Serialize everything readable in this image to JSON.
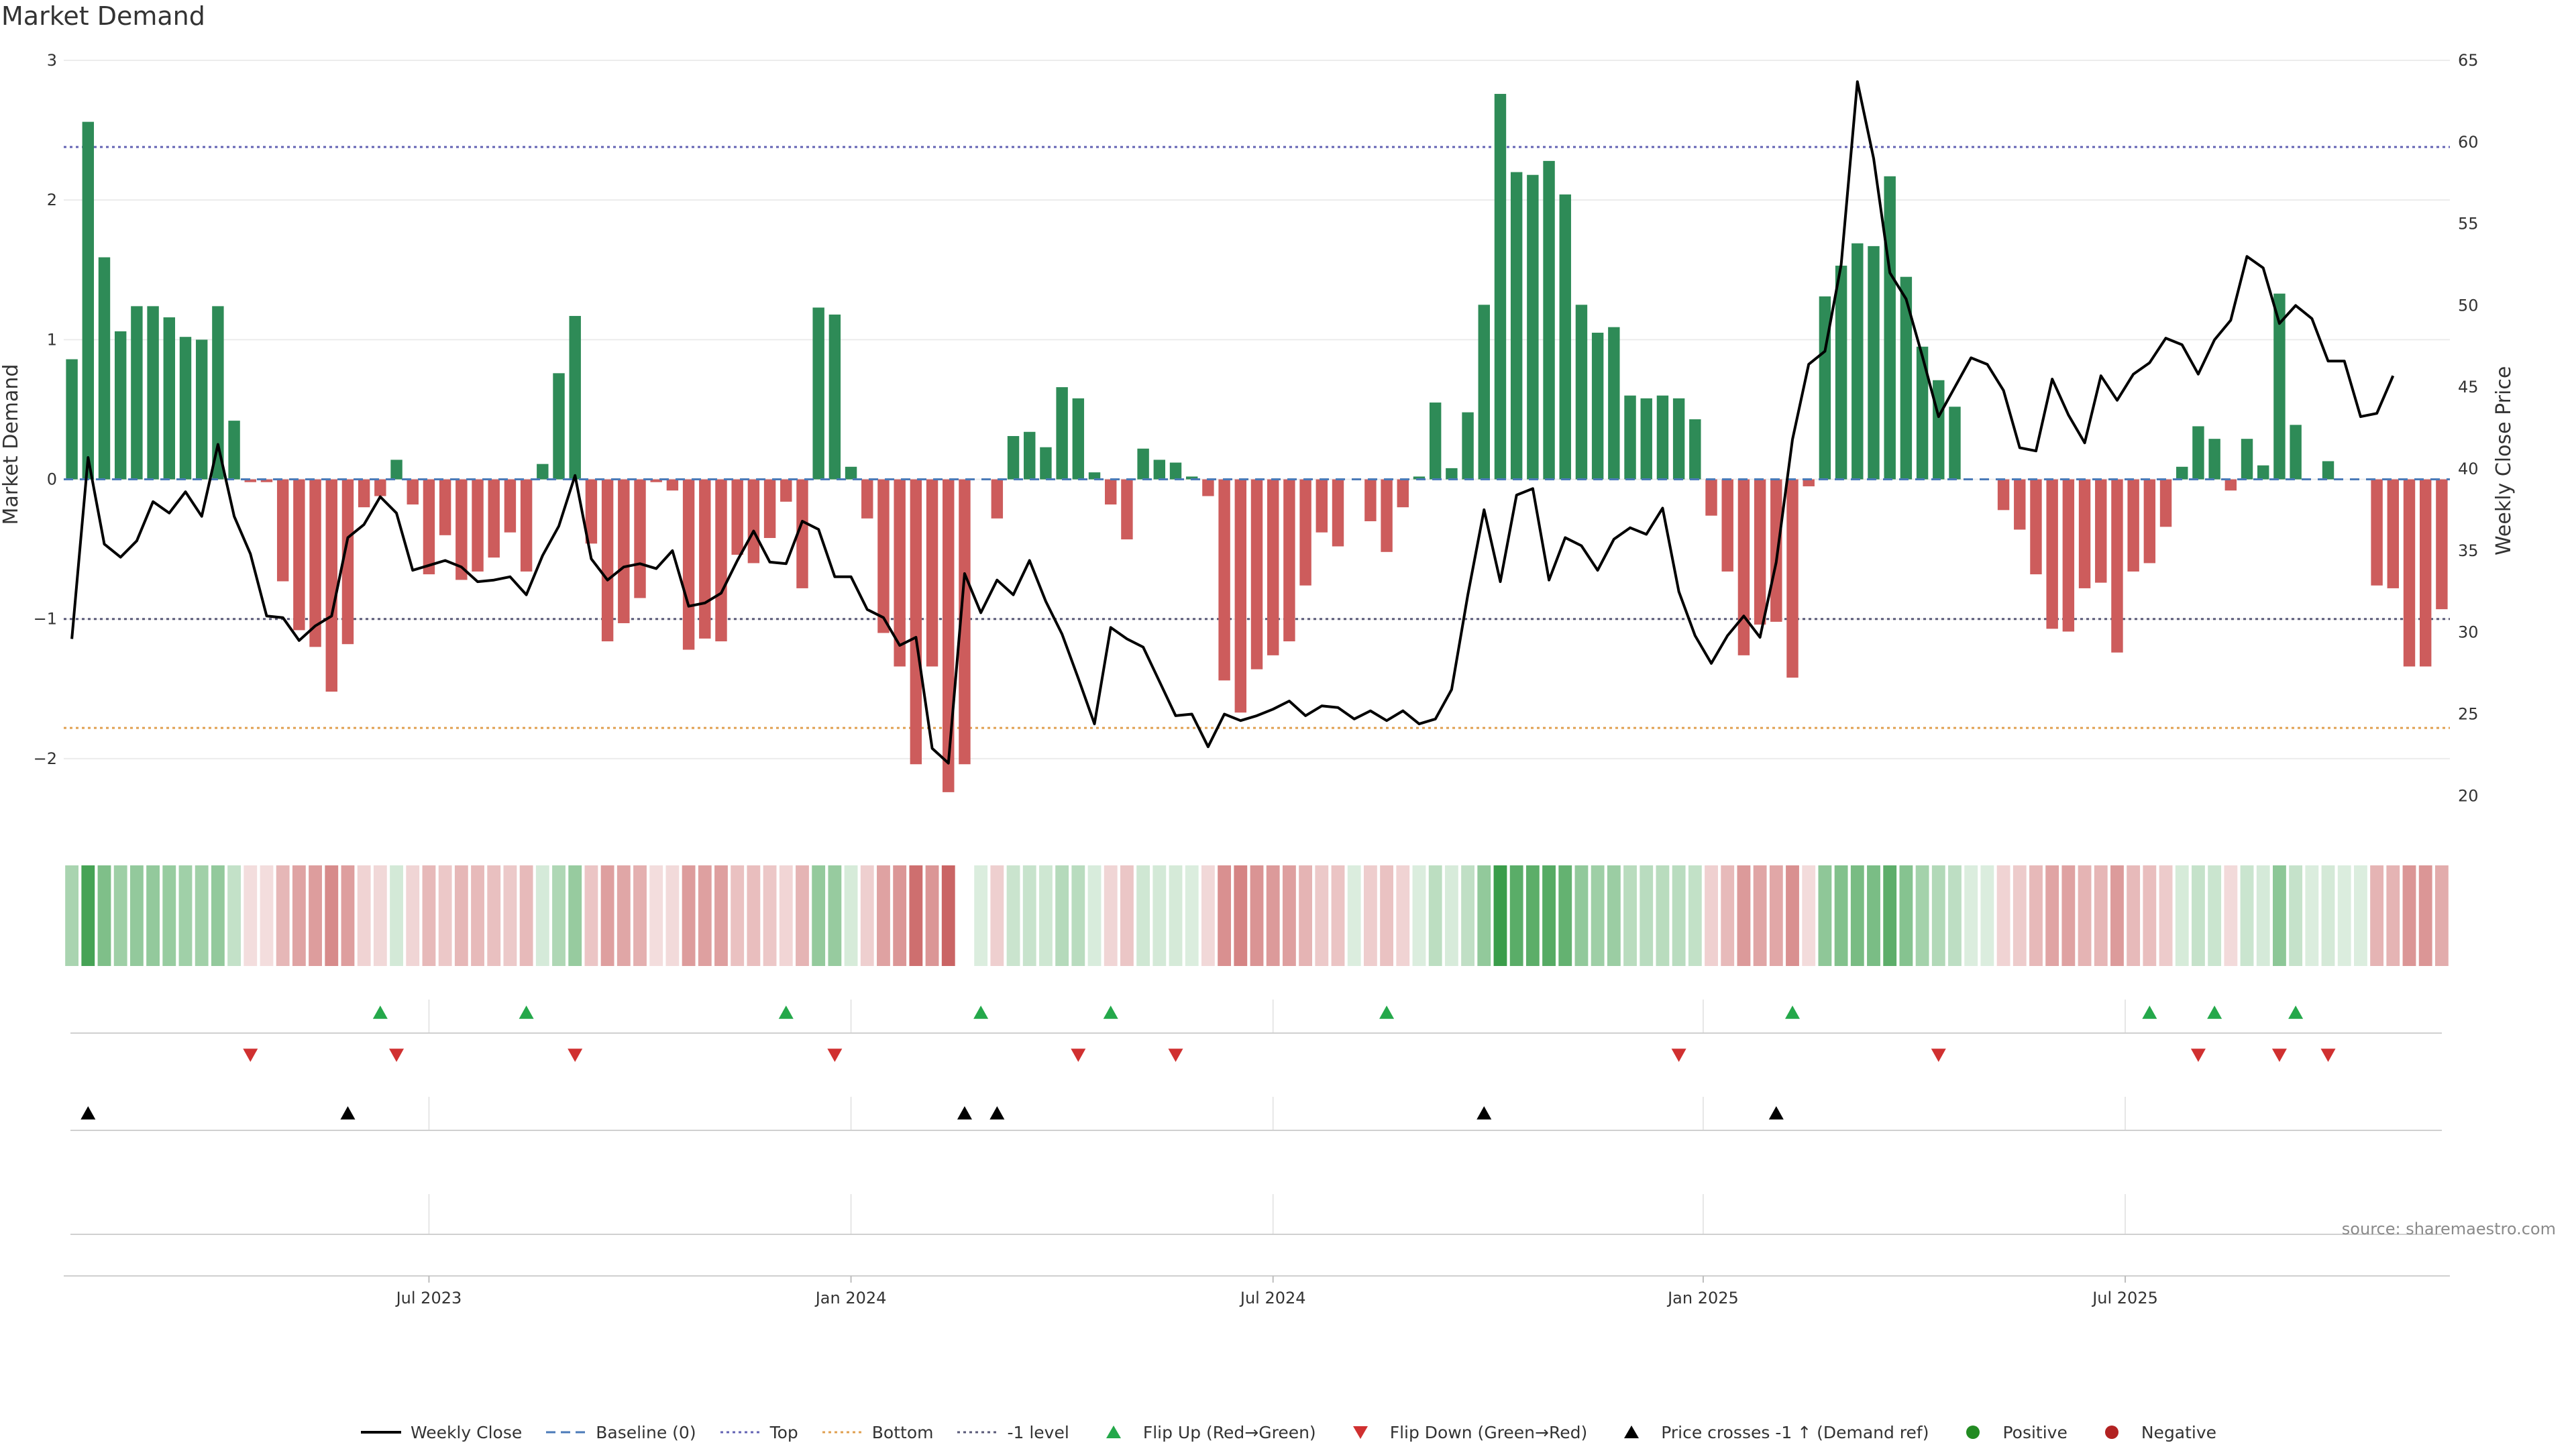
{
  "title": "Market Demand",
  "source": "source: sharemaestro.com",
  "colors": {
    "positive": "#2e8b57",
    "negative": "#cd5c5c",
    "price": "#000000",
    "top": "#6464b4",
    "bottom": "#e0a050",
    "minus_one": "#5a5a78",
    "baseline": "#4a7ab8",
    "flip_up": "#24a84a",
    "flip_down": "#d03030",
    "cross": "#000000",
    "heat_pos": "#3a9d4a",
    "heat_neg": "#c04848"
  },
  "chart_data": {
    "type": "bar",
    "title": "Market Demand",
    "ylabel": "Market Demand",
    "y2label": "Weekly Close Price",
    "ylim": [
      -2.5,
      3
    ],
    "y2lim": [
      18,
      65
    ],
    "yticks": [
      3,
      2,
      1,
      0,
      -1,
      -2
    ],
    "ytick_labels": [
      "3",
      "2",
      "1",
      "0",
      "−1",
      "−2"
    ],
    "y2ticks": [
      65,
      60,
      55,
      50,
      45,
      40,
      35,
      30,
      25,
      20
    ],
    "xticks": [
      {
        "index": 22,
        "label": "Jul 2023"
      },
      {
        "index": 48,
        "label": "Jan 2024"
      },
      {
        "index": 74,
        "label": "Jul 2024"
      },
      {
        "index": 100.5,
        "label": "Jan 2025"
      },
      {
        "index": 126.5,
        "label": "Jul 2025"
      }
    ],
    "reference_lines": {
      "top": 2.38,
      "bottom": -1.78,
      "minus_one": -1.0,
      "baseline": 0
    },
    "series": [
      {
        "name": "Market Demand",
        "axis": "left",
        "values": [
          0.86,
          2.56,
          1.59,
          1.06,
          1.24,
          1.24,
          1.16,
          1.02,
          1.0,
          1.24,
          0.42,
          -0.02,
          -0.02,
          -0.73,
          -1.08,
          -1.2,
          -1.52,
          -1.18,
          -0.2,
          -0.12,
          0.14,
          -0.18,
          -0.68,
          -0.4,
          -0.72,
          -0.66,
          -0.56,
          -0.38,
          -0.66,
          0.11,
          0.76,
          1.17,
          -0.46,
          -1.16,
          -1.03,
          -0.85,
          -0.02,
          -0.08,
          -1.22,
          -1.14,
          -1.16,
          -0.54,
          -0.6,
          -0.42,
          -0.16,
          -0.78,
          1.23,
          1.18,
          0.09,
          -0.28,
          -1.1,
          -1.34,
          -2.04,
          -1.34,
          -2.24,
          -2.04,
          0,
          -0.28,
          0.31,
          0.34,
          0.23,
          0.66,
          0.58,
          0.05,
          -0.18,
          -0.43,
          0.22,
          0.14,
          0.12,
          0.02,
          -0.12,
          -1.44,
          -1.67,
          -1.36,
          -1.26,
          -1.16,
          -0.76,
          -0.38,
          -0.48,
          0.0,
          -0.3,
          -0.52,
          -0.2,
          0.02,
          0.55,
          0.08,
          0.48,
          1.25,
          2.76,
          2.2,
          2.18,
          2.28,
          2.04,
          1.25,
          1.05,
          1.09,
          0.6,
          0.58,
          0.6,
          0.58,
          0.43,
          -0.26,
          -0.66,
          -1.26,
          -1.04,
          -1.02,
          -1.42,
          -0.05,
          1.31,
          1.53,
          1.69,
          1.67,
          2.17,
          1.45,
          0.95,
          0.71,
          0.52,
          0.0,
          0.0,
          -0.22,
          -0.36,
          -0.68,
          -1.07,
          -1.09,
          -0.78,
          -0.74,
          -1.24,
          -0.66,
          -0.6,
          -0.34,
          0.09,
          0.38,
          0.29,
          -0.08,
          0.29,
          0.1,
          1.33,
          0.39,
          0.0,
          0.13,
          0.0,
          0.0,
          -0.76,
          -0.78,
          -1.34,
          -1.34,
          -0.93
        ]
      },
      {
        "name": "Weekly Close",
        "axis": "right",
        "values": [
          29.6,
          40.7,
          35.4,
          34.6,
          35.6,
          38.0,
          37.3,
          38.6,
          37.1,
          41.5,
          37.1,
          34.8,
          31.0,
          30.9,
          29.5,
          30.4,
          31.0,
          35.8,
          36.6,
          38.3,
          37.3,
          33.8,
          34.1,
          34.4,
          34.0,
          33.1,
          33.2,
          33.4,
          32.3,
          34.7,
          36.5,
          39.6,
          34.5,
          33.2,
          34.0,
          34.2,
          33.9,
          35.0,
          31.6,
          31.8,
          32.4,
          34.4,
          36.2,
          34.3,
          34.2,
          36.8,
          36.3,
          33.4,
          33.4,
          31.4,
          30.9,
          29.2,
          29.7,
          22.9,
          22.0,
          33.6,
          31.2,
          33.2,
          32.3,
          34.4,
          31.9,
          29.9,
          27.2,
          24.4,
          30.3,
          29.6,
          29.1,
          27.0,
          24.9,
          25.0,
          23.0,
          25.0,
          24.6,
          24.9,
          25.3,
          25.8,
          24.9,
          25.5,
          25.4,
          24.7,
          25.2,
          24.6,
          25.2,
          24.4,
          24.7,
          26.5,
          32.3,
          37.5,
          33.1,
          38.4,
          38.8,
          33.2,
          35.8,
          35.3,
          33.8,
          35.7,
          36.4,
          36.0,
          37.6,
          32.5,
          29.8,
          28.1,
          29.8,
          31.0,
          29.7,
          34.3,
          41.8,
          46.4,
          47.2,
          52.5,
          63.7,
          59.0,
          52.0,
          50.4,
          46.9,
          43.2,
          45.0,
          46.8,
          46.4,
          44.8,
          41.3,
          41.1,
          45.5,
          43.3,
          41.6,
          45.7,
          44.2,
          45.8,
          46.5,
          48.0,
          47.6,
          45.8,
          47.9,
          49.1,
          53.0,
          52.3,
          48.9,
          50.0,
          49.2,
          46.6,
          46.6,
          43.2,
          43.4,
          45.7
        ]
      }
    ],
    "heatmap_gap_index": 55,
    "markers": {
      "flip_up_indices": [
        19,
        28,
        44,
        56,
        64,
        81,
        106,
        128,
        132,
        137
      ],
      "flip_down_indices": [
        11,
        20,
        31,
        47,
        62,
        68,
        99,
        115,
        131,
        136,
        139
      ],
      "price_cross_indices": [
        1,
        17,
        55,
        57,
        87,
        105
      ]
    }
  },
  "legend": [
    {
      "key": "weekly_close",
      "label": "Weekly Close"
    },
    {
      "key": "baseline",
      "label": "Baseline (0)"
    },
    {
      "key": "top",
      "label": "Top"
    },
    {
      "key": "bottom",
      "label": "Bottom"
    },
    {
      "key": "minus_one",
      "label": "-1 level"
    },
    {
      "key": "flip_up",
      "label": "Flip Up (Red→Green)"
    },
    {
      "key": "flip_down",
      "label": "Flip Down (Green→Red)"
    },
    {
      "key": "cross",
      "label": "Price crosses -1 ↑ (Demand ref)"
    },
    {
      "key": "positive",
      "label": "Positive"
    },
    {
      "key": "negative",
      "label": "Negative"
    }
  ]
}
